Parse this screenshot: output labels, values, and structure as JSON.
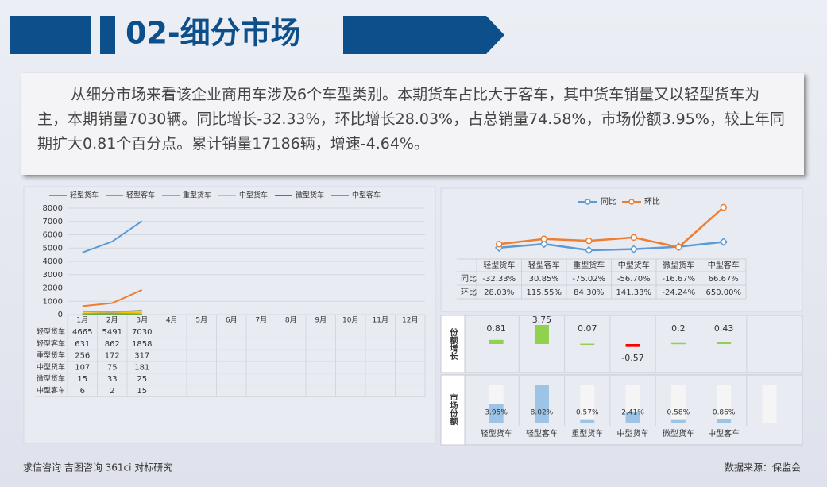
{
  "title": "02-细分市场",
  "paragraph": "从细分市场来看该企业商用车涉及6个车型类别。本期货车占比大于客车，其中货车销量又以轻型货车为主，本期销量7030辆。同比增长-32.33%，环比增长28.03%，占总销量74.58%，市场份额3.95%，较上年同期扩大0.81个百分点。累计销量17186辆，增速-4.64%。",
  "footer_left": "求信咨询 吉图咨询 361ci 对标研究",
  "footer_right": "数据来源：保监会",
  "chart_data": [
    {
      "type": "line",
      "categories": [
        "1月",
        "2月",
        "3月",
        "4月",
        "5月",
        "6月",
        "7月",
        "8月",
        "9月",
        "10月",
        "11月",
        "12月"
      ],
      "ylim": [
        0,
        8000
      ],
      "yticks": [
        0,
        1000,
        2000,
        3000,
        4000,
        5000,
        6000,
        7000,
        8000
      ],
      "grid": true,
      "legend": "top",
      "series": [
        {
          "name": "轻型货车",
          "color": "#5b9bd5",
          "values": [
            4665,
            5491,
            7030,
            null,
            null,
            null,
            null,
            null,
            null,
            null,
            null,
            null
          ]
        },
        {
          "name": "轻型客车",
          "color": "#ed7d31",
          "values": [
            631,
            862,
            1858,
            null,
            null,
            null,
            null,
            null,
            null,
            null,
            null,
            null
          ]
        },
        {
          "name": "重型货车",
          "color": "#a5a5a5",
          "values": [
            256,
            172,
            317,
            null,
            null,
            null,
            null,
            null,
            null,
            null,
            null,
            null
          ]
        },
        {
          "name": "中型货车",
          "color": "#ffc000",
          "values": [
            107,
            75,
            181,
            null,
            null,
            null,
            null,
            null,
            null,
            null,
            null,
            null
          ]
        },
        {
          "name": "微型货车",
          "color": "#4472c4",
          "values": [
            15,
            33,
            25,
            null,
            null,
            null,
            null,
            null,
            null,
            null,
            null,
            null
          ]
        },
        {
          "name": "中型客车",
          "color": "#70ad47",
          "values": [
            6,
            2,
            15,
            null,
            null,
            null,
            null,
            null,
            null,
            null,
            null,
            null
          ]
        }
      ]
    },
    {
      "type": "line",
      "categories": [
        "轻型货车",
        "轻型客车",
        "重型货车",
        "中型货车",
        "微型货车",
        "中型客车"
      ],
      "legend": "top",
      "series": [
        {
          "name": "同比",
          "color": "#5b9bd5",
          "values": [
            -32.33,
            30.85,
            -75.02,
            -56.7,
            -16.67,
            66.67
          ],
          "value_labels": [
            "-32.33%",
            "30.85%",
            "-75.02%",
            "-56.70%",
            "-16.67%",
            "66.67%"
          ]
        },
        {
          "name": "环比",
          "color": "#ed7d31",
          "values": [
            28.03,
            115.55,
            84.3,
            141.33,
            -24.24,
            650.0
          ],
          "value_labels": [
            "28.03%",
            "115.55%",
            "84.30%",
            "141.33%",
            "-24.24%",
            "650.00%"
          ]
        }
      ]
    },
    {
      "type": "bar",
      "title": "份额增长",
      "values": [
        0.81,
        3.75,
        0.07,
        -0.57,
        0.2,
        0.43
      ],
      "color": "#92d050",
      "negative_color": "#ff0000"
    },
    {
      "type": "bar",
      "title": "市场份额",
      "categories": [
        "轻型货车",
        "轻型客车",
        "重型货车",
        "中型货车",
        "微型货车",
        "中型客车"
      ],
      "values": [
        3.95,
        8.02,
        0.57,
        2.41,
        0.58,
        0.86
      ],
      "value_labels": [
        "3.95%",
        "8.02%",
        "0.57%",
        "2.41%",
        "0.58%",
        "0.86%"
      ],
      "color": "#9dc3e6"
    }
  ]
}
